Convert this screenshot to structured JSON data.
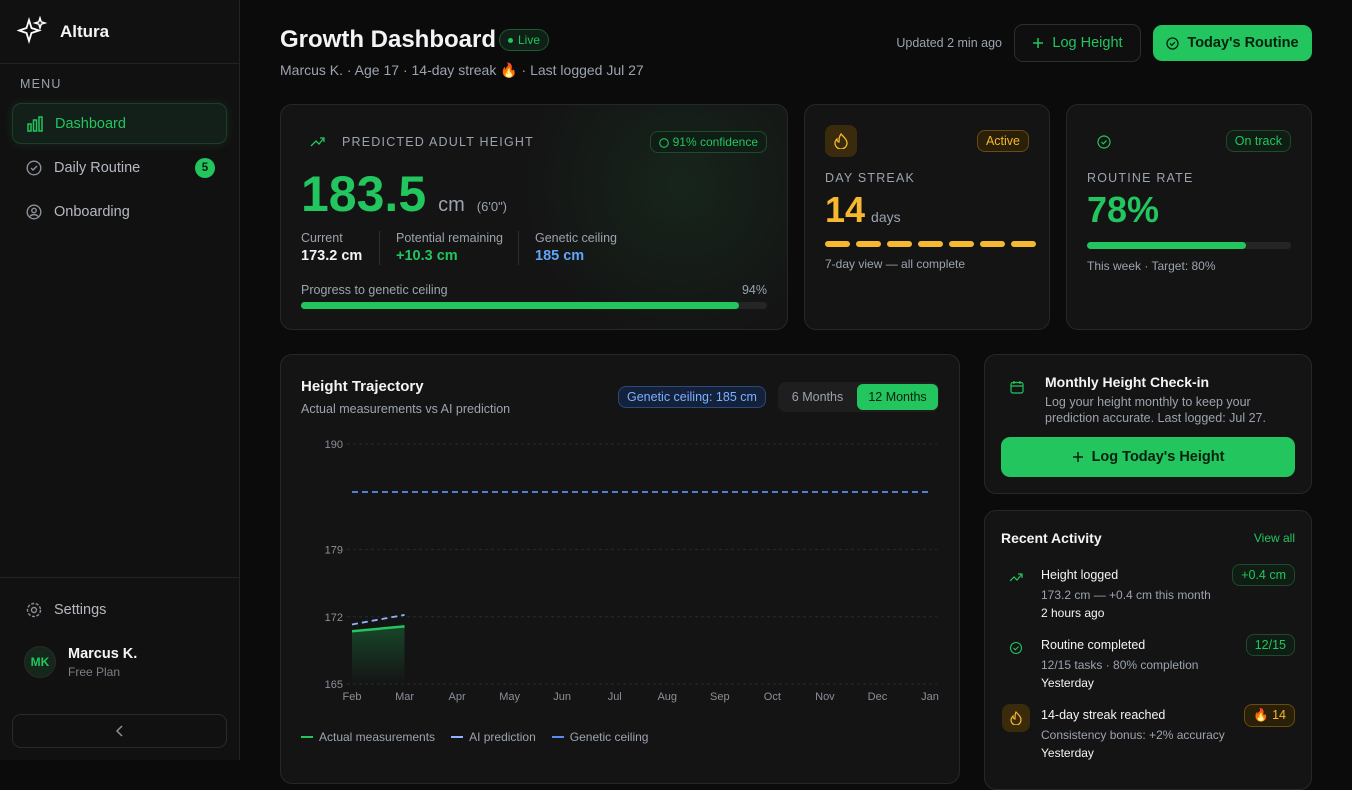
{
  "sidebar": {
    "brand": "Altura",
    "menu_label": "MENU",
    "nav": [
      {
        "label": "Dashboard"
      },
      {
        "label": "Daily Routine",
        "badge": 5
      },
      {
        "label": "Onboarding"
      }
    ],
    "settings": "Settings",
    "user": {
      "initials": "MK",
      "name": "Marcus K.",
      "plan": "Free Plan"
    }
  },
  "header": {
    "title": "Growth Dashboard",
    "status": "Live",
    "subtitle": "Marcus K. · Age 17 · 14-day streak 🔥 · Last logged Jul 27",
    "updated": "Updated 2 min ago",
    "log_button": "Log Height",
    "routine_button": "Today's Routine"
  },
  "prediction": {
    "label": "PREDICTED ADULT HEIGHT",
    "confidence": "91% confidence",
    "value": 183.5,
    "unit": "cm",
    "imperial": "(6'0\")",
    "stats": [
      {
        "label": "Current",
        "value": "173.2 cm"
      },
      {
        "label": "Potential remaining",
        "value": "+10.3 cm"
      },
      {
        "label": "Genetic ceiling",
        "value": "185 cm"
      }
    ],
    "progress_label": "Progress to genetic ceiling",
    "progress": {
      "value": 94,
      "label": "94%"
    }
  },
  "streak": {
    "status": "Active",
    "label": "DAY STREAK",
    "value": 14,
    "unit": "days",
    "note": "7-day view — all complete"
  },
  "routine": {
    "status": "On track",
    "label": "ROUTINE RATE",
    "rate": {
      "value": 78,
      "label": "78%"
    },
    "note": "This week · Target: 80%"
  },
  "chart_data": {
    "type": "line",
    "title": "Height Trajectory",
    "subtitle": "Actual measurements vs AI prediction",
    "ceiling_badge": "Genetic ceiling: 185 cm",
    "ranges": [
      "6 Months",
      "12 Months"
    ],
    "categories": [
      "Feb",
      "Mar",
      "Apr",
      "May",
      "Jun",
      "Jul",
      "Aug",
      "Sep",
      "Oct",
      "Nov",
      "Dec",
      "Jan"
    ],
    "series": [
      {
        "name": "Actual measurements",
        "color": "#22c55e",
        "values": [
          170.5,
          171.0,
          null,
          null,
          null,
          null,
          null,
          null,
          null,
          null,
          null,
          null
        ]
      },
      {
        "name": "AI prediction",
        "color": "#8fb4ff",
        "values": [
          171.2,
          172.2,
          null,
          null,
          null,
          null,
          null,
          null,
          null,
          null,
          null,
          null
        ]
      },
      {
        "name": "Genetic ceiling",
        "color": "#5b8def",
        "values": [
          185,
          185,
          185,
          185,
          185,
          185,
          185,
          185,
          185,
          185,
          185,
          185
        ]
      }
    ],
    "ylim": [
      165,
      190
    ],
    "yticks": [
      165,
      172,
      179,
      190
    ],
    "grid": true
  },
  "checkin": {
    "title": "Monthly Height Check-in",
    "text": "Log your height monthly to keep your prediction accurate. Last logged: Jul 27.",
    "button": "Log Today's Height"
  },
  "activity": {
    "title": "Recent Activity",
    "link": "View all",
    "items": [
      {
        "title": "Height logged",
        "badge": "+0.4 cm",
        "detail": "173.2 cm — +0.4 cm this month",
        "time": "2 hours ago"
      },
      {
        "title": "Routine completed",
        "badge": "12/15",
        "detail": "12/15 tasks · 80% completion",
        "time": "Yesterday"
      },
      {
        "title": "14-day streak reached",
        "badge": "🔥 14",
        "detail": "Consistency bonus: +2% accuracy",
        "time": "Yesterday"
      }
    ]
  }
}
